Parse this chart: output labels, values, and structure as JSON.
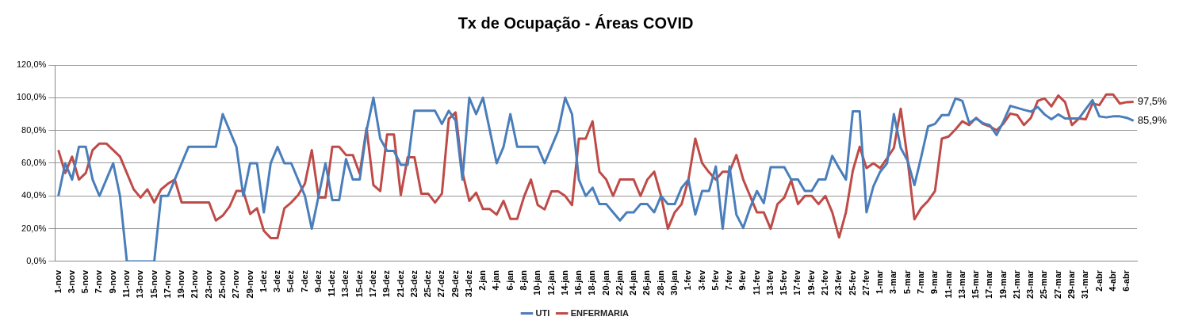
{
  "chart_data": {
    "type": "line",
    "title": "Tx de Ocupação - Áreas COVID",
    "categories": [
      "1-nov",
      null,
      "3-nov",
      null,
      "5-nov",
      null,
      "7-nov",
      null,
      "9-nov",
      null,
      "11-nov",
      null,
      "13-nov",
      null,
      "15-nov",
      null,
      "17-nov",
      null,
      "19-nov",
      null,
      "21-nov",
      null,
      "23-nov",
      null,
      "25-nov",
      null,
      "27-nov",
      null,
      "29-nov",
      null,
      "1-dez",
      null,
      "3-dez",
      null,
      "5-dez",
      null,
      "7-dez",
      null,
      "9-dez",
      null,
      "11-dez",
      null,
      "13-dez",
      null,
      "15-dez",
      null,
      "17-dez",
      null,
      "19-dez",
      null,
      "21-dez",
      null,
      "23-dez",
      null,
      "25-dez",
      null,
      "27-dez",
      null,
      "29-dez",
      null,
      "31-dez",
      null,
      "2-jan",
      null,
      "4-jan",
      null,
      "6-jan",
      null,
      "8-jan",
      null,
      "10-jan",
      null,
      "12-jan",
      null,
      "14-jan",
      null,
      "16-jan",
      null,
      "18-jan",
      null,
      "20-jan",
      null,
      "22-jan",
      null,
      "24-jan",
      null,
      "26-jan",
      null,
      "28-jan",
      null,
      "30-jan",
      null,
      "1-fev",
      null,
      "3-fev",
      null,
      "5-fev",
      null,
      "7-fev",
      null,
      "9-fev",
      null,
      "11-fev",
      null,
      "13-fev",
      null,
      "15-fev",
      null,
      "17-fev",
      null,
      "19-fev",
      null,
      "21-fev",
      null,
      "23-fev",
      null,
      "25-fev",
      null,
      "27-fev",
      null,
      "1-mar",
      null,
      "3-mar",
      null,
      "5-mar",
      null,
      "7-mar",
      null,
      "9-mar",
      null,
      "11-mar",
      null,
      "13-mar",
      null,
      "15-mar",
      null,
      "17-mar",
      null,
      "19-mar",
      null,
      "21-mar",
      null,
      "23-mar",
      null,
      "25-mar",
      null,
      "27-mar",
      null,
      "29-mar",
      null,
      "31-mar",
      null,
      "2-abr",
      null,
      "4-abr",
      null,
      "6-abr",
      null
    ],
    "series": [
      {
        "name": "UTI",
        "color": "#4a7ebb",
        "values": [
          40,
          60,
          50,
          70,
          70,
          50,
          40,
          50,
          60,
          40,
          0,
          0,
          0,
          0,
          0,
          40,
          40,
          50,
          60,
          70,
          70,
          70,
          70,
          70,
          90,
          80,
          70,
          40,
          60,
          60,
          30,
          60,
          70,
          60,
          60,
          50,
          40,
          20,
          40,
          60,
          37.5,
          37.5,
          62.5,
          50,
          50,
          80,
          100,
          75,
          67.5,
          67.5,
          59,
          59,
          92,
          92,
          92,
          92,
          84,
          92,
          86,
          50,
          100,
          90,
          100,
          80,
          60,
          70,
          90,
          70,
          70,
          70,
          70,
          60,
          70,
          80,
          100,
          90,
          50,
          40,
          45,
          35,
          35,
          30,
          25,
          30,
          30,
          35,
          35,
          30,
          40,
          35,
          35,
          45,
          50,
          28.6,
          43,
          43,
          58,
          20,
          58,
          28.6,
          20.5,
          32.7,
          43,
          35.6,
          57.6,
          57.6,
          57.6,
          50,
          50,
          43,
          43,
          50,
          50,
          64.5,
          57,
          50,
          91.7,
          91.7,
          30,
          45.8,
          54.8,
          60,
          90,
          69.3,
          61.5,
          46.6,
          64,
          82.5,
          84,
          89.4,
          89.4,
          99.6,
          98,
          84.5,
          87.3,
          84.5,
          83.3,
          77.2,
          85.6,
          95,
          93.8,
          92.6,
          91.5,
          94.3,
          89.8,
          86.8,
          89.8,
          87.3,
          87.3,
          87.3,
          93,
          98.5,
          88.6,
          88,
          88.6,
          88.6,
          87.7,
          85.9
        ],
        "value_labels": [
          null,
          null,
          null,
          null,
          null,
          null,
          null,
          null,
          null,
          null,
          null,
          null,
          null,
          null,
          null,
          null,
          null,
          null,
          null,
          null,
          null,
          null,
          null,
          null,
          null,
          null,
          null,
          null,
          null,
          null,
          null,
          null,
          null,
          null,
          null,
          null,
          null,
          null,
          null,
          null,
          null,
          null,
          null,
          null,
          null,
          null,
          null,
          null,
          null,
          null,
          null,
          null,
          null,
          null,
          null,
          null,
          null,
          null,
          null,
          null,
          null,
          null,
          null,
          null,
          null,
          null,
          null,
          null,
          null,
          null,
          null,
          null,
          null,
          null,
          null,
          null,
          null,
          null,
          null,
          null,
          null,
          null,
          null,
          null,
          null,
          null,
          null,
          null,
          null,
          null,
          null,
          null,
          null,
          null,
          null,
          null,
          null,
          null,
          null,
          null,
          null,
          null,
          null,
          null,
          null,
          null,
          null,
          null,
          null,
          null,
          null,
          null,
          null,
          null,
          null,
          null,
          null,
          null,
          null,
          null,
          null,
          null,
          null,
          null,
          null,
          null,
          null,
          null,
          null,
          null,
          null,
          null,
          null,
          null,
          null,
          null,
          null,
          null,
          null,
          null,
          null,
          null,
          null,
          null,
          null,
          null,
          null,
          null,
          null,
          null,
          null,
          null,
          null,
          null,
          null,
          null,
          null,
          "85,9%"
        ]
      },
      {
        "name": "ENFERMARIA",
        "color": "#be4b48",
        "values": [
          68,
          54,
          64,
          50,
          54,
          68,
          72,
          72,
          68,
          64,
          54,
          44,
          39,
          44,
          36,
          44,
          47.5,
          50,
          36,
          36,
          36,
          36,
          36,
          25,
          28,
          33.5,
          43,
          43,
          29,
          32.5,
          18.7,
          14.3,
          14.3,
          32.5,
          36,
          40.5,
          47.5,
          68,
          39,
          39,
          70,
          70,
          65,
          65,
          53.6,
          81.5,
          46.6,
          43,
          77.5,
          77.5,
          40.5,
          63.6,
          63.6,
          41.4,
          41.4,
          36,
          41.4,
          87,
          91,
          54.5,
          37,
          42,
          32,
          32,
          28.6,
          37,
          26,
          26,
          39.6,
          50,
          34.4,
          31.8,
          42.8,
          42.8,
          40,
          34.4,
          75,
          75,
          85.6,
          54.8,
          50,
          40,
          50,
          50,
          50,
          40,
          50,
          54.8,
          40,
          20,
          30,
          35,
          50,
          75,
          60,
          54.5,
          50,
          54.8,
          54.8,
          65,
          50,
          40,
          30,
          30,
          20,
          35,
          39,
          49.6,
          35,
          40,
          40,
          35,
          40,
          30,
          14.7,
          30,
          55.4,
          70,
          57,
          60,
          57,
          63,
          69.3,
          93.3,
          62.4,
          25.7,
          32.7,
          37,
          43,
          75,
          76.3,
          80.7,
          85.6,
          83.3,
          87.7,
          84,
          82.5,
          80,
          84.2,
          90.3,
          89.4,
          83.3,
          87.7,
          98,
          99.6,
          94.7,
          101.3,
          97.3,
          83.3,
          87.3,
          86.8,
          96.4,
          95.5,
          102,
          102,
          96.4,
          97.3,
          97.5
        ],
        "value_labels": [
          null,
          null,
          null,
          null,
          null,
          null,
          null,
          null,
          null,
          null,
          null,
          null,
          null,
          null,
          null,
          null,
          null,
          null,
          null,
          null,
          null,
          null,
          null,
          null,
          null,
          null,
          null,
          null,
          null,
          null,
          null,
          null,
          null,
          null,
          null,
          null,
          null,
          null,
          null,
          null,
          null,
          null,
          null,
          null,
          null,
          null,
          null,
          null,
          null,
          null,
          null,
          null,
          null,
          null,
          null,
          null,
          null,
          null,
          null,
          null,
          null,
          null,
          null,
          null,
          null,
          null,
          null,
          null,
          null,
          null,
          null,
          null,
          null,
          null,
          null,
          null,
          null,
          null,
          null,
          null,
          null,
          null,
          null,
          null,
          null,
          null,
          null,
          null,
          null,
          null,
          null,
          null,
          null,
          null,
          null,
          null,
          null,
          null,
          null,
          null,
          null,
          null,
          null,
          null,
          null,
          null,
          null,
          null,
          null,
          null,
          null,
          null,
          null,
          null,
          null,
          null,
          null,
          null,
          null,
          null,
          null,
          null,
          null,
          null,
          null,
          null,
          null,
          null,
          null,
          null,
          null,
          null,
          null,
          null,
          null,
          null,
          null,
          null,
          null,
          null,
          null,
          null,
          null,
          null,
          null,
          null,
          null,
          null,
          null,
          null,
          null,
          null,
          null,
          null,
          null,
          null,
          null,
          "97,5%"
        ]
      }
    ],
    "ylim": [
      0,
      120
    ],
    "yticks": [
      {
        "value": 0,
        "label": "0,0%"
      },
      {
        "value": 20,
        "label": "20,0%"
      },
      {
        "value": 40,
        "label": "40,0%"
      },
      {
        "value": 60,
        "label": "60,0%"
      },
      {
        "value": 80,
        "label": "80,0%"
      },
      {
        "value": 100,
        "label": "100,0%"
      },
      {
        "value": 120,
        "label": "120,0%"
      }
    ],
    "grid": "y",
    "legend": "bottom",
    "marker": "none",
    "line_style": "solid"
  }
}
